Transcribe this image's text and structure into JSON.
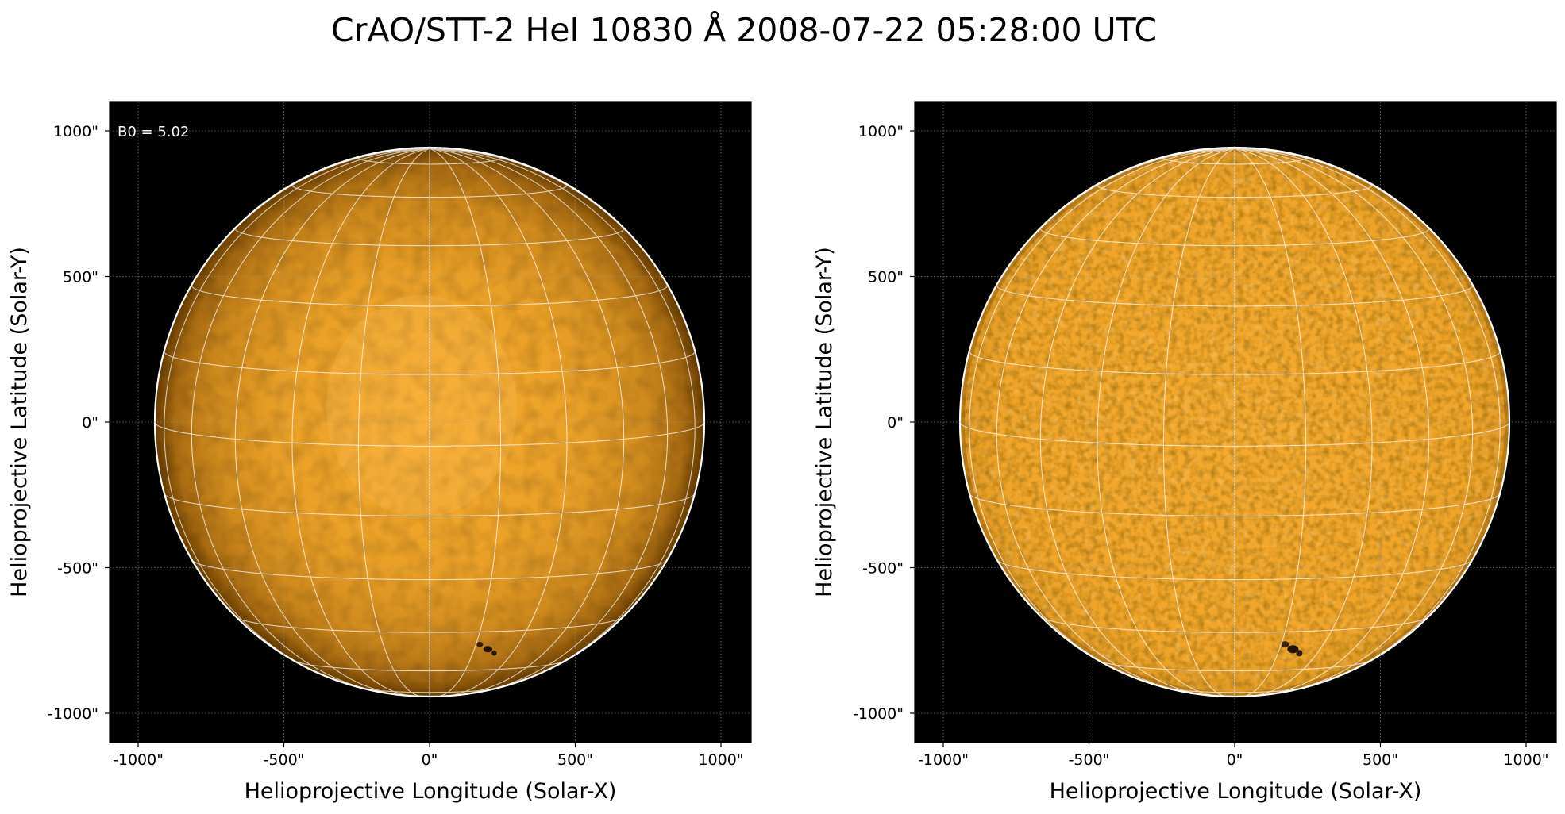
{
  "figure": {
    "title": "CrAO/STT-2 HeI 10830 Å 2008-07-22 05:28:00 UTC"
  },
  "panels": [
    {
      "id": "left",
      "annotation": "B0 = 5.02",
      "xlabel": "Helioprojective Longitude (Solar-X)",
      "ylabel": "Helioprojective Latitude (Solar-Y)",
      "x_ticks": [
        "-1000\"",
        "-500\"",
        "0\"",
        "500\"",
        "1000\""
      ],
      "y_ticks": [
        "1000\"",
        "500\"",
        "0\"",
        "-500\"",
        "-1000\""
      ],
      "disk_tone": "smooth, limb-darkened"
    },
    {
      "id": "right",
      "annotation": "",
      "xlabel": "Helioprojective Longitude (Solar-X)",
      "ylabel": "Helioprojective Latitude (Solar-Y)",
      "x_ticks": [
        "-1000\"",
        "-500\"",
        "0\"",
        "500\"",
        "1000\""
      ],
      "y_ticks": [
        "1000\"",
        "500\"",
        "0\"",
        "-500\"",
        "-1000\""
      ],
      "disk_tone": "flat-fielded, mottled"
    }
  ],
  "colors": {
    "background": "#000000",
    "disk_center": "#ffb62e",
    "disk_limb": "#6b3f00",
    "disk_flat": "#f2a72a",
    "grid_lines": "#ffffff",
    "limb_circle": "#ffffff",
    "sunspot": "#1a0c00"
  }
}
